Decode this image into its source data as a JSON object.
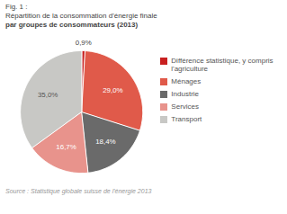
{
  "chart_data": {
    "type": "pie",
    "title": "Fig. 1 :",
    "subtitle": [
      "Répartition de la consommation d'énergie finale",
      "par groupes de consommateurs (2013)"
    ],
    "caption": "Source : Statistique globale suisse de l'énergie 2013",
    "categories": [
      "Différence statistique, y compris l'agriculture",
      "Ménages",
      "Industrie",
      "Services",
      "Transport"
    ],
    "values": [
      0.9,
      29.0,
      18.4,
      16.7,
      35.0
    ],
    "value_labels": [
      "0,9%",
      "29,0%",
      "18,4%",
      "16,7%",
      "35,0%"
    ],
    "colors": [
      "#c82020",
      "#e05a4a",
      "#6a6a6a",
      "#e8938c",
      "#c8c8c5"
    ],
    "data_labels": true,
    "legend": "right"
  }
}
